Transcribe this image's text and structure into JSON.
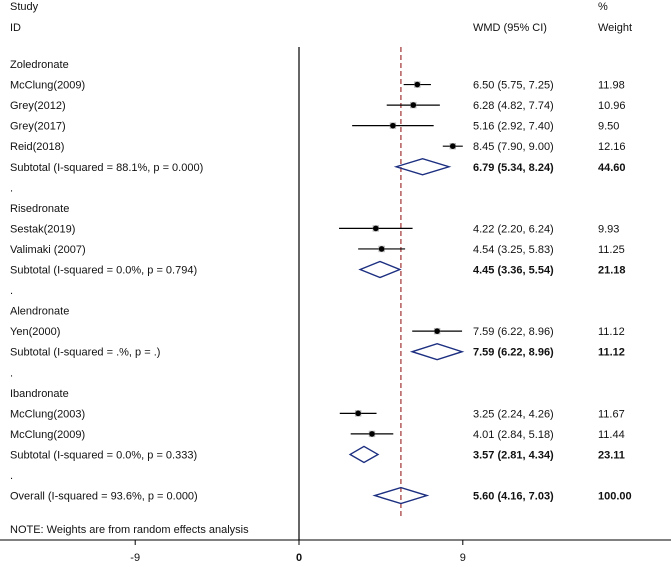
{
  "header": {
    "study_line1": "Study",
    "study_line2": "ID",
    "effect_label": "WMD (95% CI)",
    "weight_line1": "%",
    "weight_line2": "Weight"
  },
  "note": "NOTE: Weights are from random effects analysis",
  "colors": {
    "diamond": "#1c2f80",
    "refline": "#a03030",
    "axis": "#000000"
  },
  "chart_data": {
    "type": "forest",
    "xticks": [
      -9,
      0,
      9
    ],
    "null_line": 0,
    "overall_line": 5.6,
    "rows": [
      {
        "kind": "group",
        "label": "Zoledronate"
      },
      {
        "kind": "study",
        "label": "McClung(2009)",
        "est": 6.5,
        "lo": 5.75,
        "hi": 7.25,
        "ci_text": "6.50 (5.75, 7.25)",
        "weight": "11.98"
      },
      {
        "kind": "study",
        "label": "Grey(2012)",
        "est": 6.28,
        "lo": 4.82,
        "hi": 7.74,
        "ci_text": "6.28 (4.82, 7.74)",
        "weight": "10.96"
      },
      {
        "kind": "study",
        "label": "Grey(2017)",
        "est": 5.16,
        "lo": 2.92,
        "hi": 7.4,
        "ci_text": "5.16 (2.92, 7.40)",
        "weight": "9.50"
      },
      {
        "kind": "study",
        "label": "Reid(2018)",
        "est": 8.45,
        "lo": 7.9,
        "hi": 9.0,
        "ci_text": "8.45 (7.90, 9.00)",
        "weight": "12.16"
      },
      {
        "kind": "subtotal",
        "label": "Subtotal  (I-squared = 88.1%, p = 0.000)",
        "est": 6.79,
        "lo": 5.34,
        "hi": 8.24,
        "ci_text": "6.79 (5.34, 8.24)",
        "weight": "44.60"
      },
      {
        "kind": "dot",
        "label": "."
      },
      {
        "kind": "group",
        "label": "Risedronate"
      },
      {
        "kind": "study",
        "label": "Sestak(2019)",
        "est": 4.22,
        "lo": 2.2,
        "hi": 6.24,
        "ci_text": "4.22 (2.20, 6.24)",
        "weight": "9.93"
      },
      {
        "kind": "study",
        "label": "Valimaki (2007)",
        "est": 4.54,
        "lo": 3.25,
        "hi": 5.83,
        "ci_text": "4.54 (3.25, 5.83)",
        "weight": "11.25"
      },
      {
        "kind": "subtotal",
        "label": "Subtotal  (I-squared = 0.0%, p = 0.794)",
        "est": 4.45,
        "lo": 3.36,
        "hi": 5.54,
        "ci_text": "4.45 (3.36, 5.54)",
        "weight": "21.18"
      },
      {
        "kind": "dot",
        "label": "."
      },
      {
        "kind": "group",
        "label": "Alendronate"
      },
      {
        "kind": "study",
        "label": "Yen(2000)",
        "est": 7.59,
        "lo": 6.22,
        "hi": 8.96,
        "ci_text": "7.59 (6.22, 8.96)",
        "weight": "11.12"
      },
      {
        "kind": "subtotal",
        "label": "Subtotal  (I-squared = .%, p = .)",
        "est": 7.59,
        "lo": 6.22,
        "hi": 8.96,
        "ci_text": "7.59 (6.22, 8.96)",
        "weight": "11.12"
      },
      {
        "kind": "dot",
        "label": "."
      },
      {
        "kind": "group",
        "label": "Ibandronate"
      },
      {
        "kind": "study",
        "label": "McClung(2003)",
        "est": 3.25,
        "lo": 2.24,
        "hi": 4.26,
        "ci_text": "3.25 (2.24, 4.26)",
        "weight": "11.67"
      },
      {
        "kind": "study",
        "label": "McClung(2009)",
        "est": 4.01,
        "lo": 2.84,
        "hi": 5.18,
        "ci_text": "4.01 (2.84, 5.18)",
        "weight": "11.44"
      },
      {
        "kind": "subtotal",
        "label": "Subtotal  (I-squared = 0.0%, p = 0.333)",
        "est": 3.57,
        "lo": 2.81,
        "hi": 4.34,
        "ci_text": "3.57 (2.81, 4.34)",
        "weight": "23.11"
      },
      {
        "kind": "dot",
        "label": "."
      },
      {
        "kind": "overall",
        "label": "Overall  (I-squared = 93.6%, p = 0.000)",
        "est": 5.6,
        "lo": 4.16,
        "hi": 7.03,
        "ci_text": "5.60 (4.16, 7.03)",
        "weight": "100.00"
      }
    ]
  }
}
